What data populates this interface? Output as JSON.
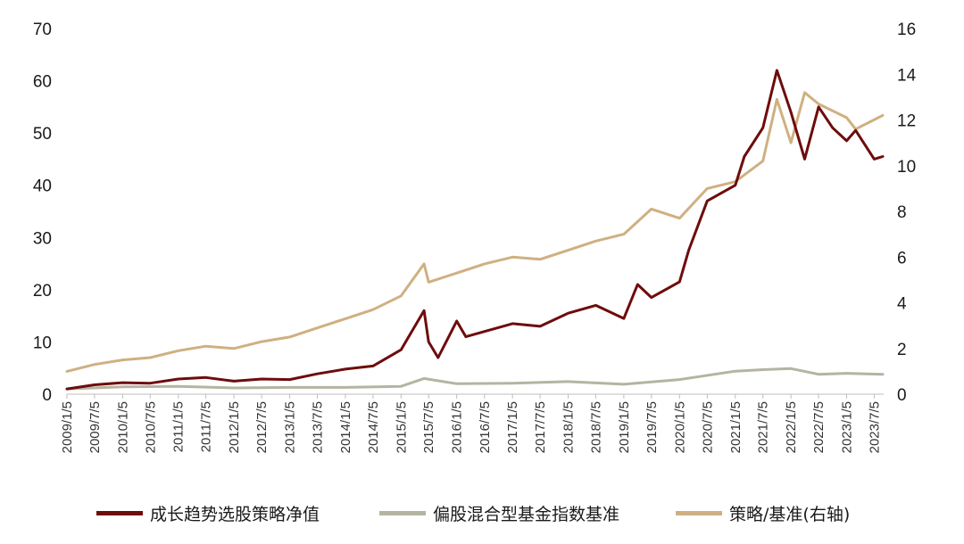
{
  "chart_data": {
    "type": "line",
    "title": "",
    "xlabel": "",
    "ylabel": "",
    "y_left": {
      "ylim": [
        0,
        70
      ],
      "ticks": [
        "0",
        "10",
        "20",
        "30",
        "40",
        "50",
        "60",
        "70"
      ]
    },
    "y_right": {
      "ylim": [
        0,
        16
      ],
      "ticks": [
        "0",
        "2",
        "4",
        "6",
        "8",
        "10",
        "12",
        "14",
        "16"
      ]
    },
    "x_tick_labels": [
      "2009/1/5",
      "2009/7/5",
      "2010/1/5",
      "2010/7/5",
      "2011/1/5",
      "2011/7/5",
      "2012/1/5",
      "2012/7/5",
      "2013/1/5",
      "2013/7/5",
      "2014/1/5",
      "2014/7/5",
      "2015/1/5",
      "2015/7/5",
      "2016/1/5",
      "2016/7/5",
      "2017/1/5",
      "2017/7/5",
      "2018/1/5",
      "2018/7/5",
      "2019/1/5",
      "2019/7/5",
      "2020/1/5",
      "2020/7/5",
      "2021/1/5",
      "2021/7/5",
      "2022/1/5",
      "2022/7/5",
      "2023/1/5",
      "2023/7/5"
    ],
    "grid": false,
    "legend_position": "bottom",
    "series": [
      {
        "name": "成长趋势选股策略净值",
        "axis": "left",
        "color": "#6e0c0c",
        "points": [
          [
            "2009/1/5",
            1.0
          ],
          [
            "2009/7/5",
            1.8
          ],
          [
            "2010/1/5",
            2.2
          ],
          [
            "2010/7/5",
            2.1
          ],
          [
            "2011/1/5",
            2.9
          ],
          [
            "2011/7/5",
            3.2
          ],
          [
            "2012/1/5",
            2.5
          ],
          [
            "2012/7/5",
            2.9
          ],
          [
            "2013/1/5",
            2.8
          ],
          [
            "2013/7/5",
            3.9
          ],
          [
            "2014/1/5",
            4.8
          ],
          [
            "2014/7/5",
            5.4
          ],
          [
            "2015/1/5",
            8.5
          ],
          [
            "2015/6/5",
            16.0
          ],
          [
            "2015/7/5",
            10.0
          ],
          [
            "2015/9/5",
            7.0
          ],
          [
            "2016/1/5",
            14.0
          ],
          [
            "2016/3/5",
            11.0
          ],
          [
            "2016/7/5",
            12.0
          ],
          [
            "2017/1/5",
            13.5
          ],
          [
            "2017/7/5",
            13.0
          ],
          [
            "2018/1/5",
            15.5
          ],
          [
            "2018/7/5",
            17.0
          ],
          [
            "2019/1/5",
            14.5
          ],
          [
            "2019/4/5",
            21.0
          ],
          [
            "2019/7/5",
            18.5
          ],
          [
            "2020/1/5",
            21.5
          ],
          [
            "2020/3/5",
            27.5
          ],
          [
            "2020/7/5",
            37.0
          ],
          [
            "2021/1/5",
            40.0
          ],
          [
            "2021/3/5",
            45.5
          ],
          [
            "2021/7/5",
            51.0
          ],
          [
            "2021/10/5",
            62.0
          ],
          [
            "2022/1/5",
            54.0
          ],
          [
            "2022/4/5",
            45.0
          ],
          [
            "2022/7/5",
            55.0
          ],
          [
            "2022/10/5",
            51.0
          ],
          [
            "2023/1/5",
            48.5
          ],
          [
            "2023/3/5",
            50.5
          ],
          [
            "2023/7/5",
            45.0
          ],
          [
            "2023/8/30",
            45.5
          ]
        ]
      },
      {
        "name": "偏股混合型基金指数基准",
        "axis": "left",
        "color": "#b5b4a2",
        "points": [
          [
            "2009/1/5",
            1.0
          ],
          [
            "2010/1/5",
            1.4
          ],
          [
            "2011/1/5",
            1.5
          ],
          [
            "2012/1/5",
            1.2
          ],
          [
            "2013/1/5",
            1.3
          ],
          [
            "2014/1/5",
            1.3
          ],
          [
            "2015/1/5",
            1.5
          ],
          [
            "2015/6/5",
            3.0
          ],
          [
            "2016/1/5",
            2.0
          ],
          [
            "2017/1/5",
            2.1
          ],
          [
            "2018/1/5",
            2.4
          ],
          [
            "2019/1/5",
            1.9
          ],
          [
            "2020/1/5",
            2.8
          ],
          [
            "2021/1/5",
            4.4
          ],
          [
            "2021/7/5",
            4.7
          ],
          [
            "2022/1/5",
            4.9
          ],
          [
            "2022/7/5",
            3.8
          ],
          [
            "2023/1/5",
            4.0
          ],
          [
            "2023/8/30",
            3.8
          ]
        ]
      },
      {
        "name": "策略/基准(右轴)",
        "axis": "right",
        "color": "#cfb082",
        "points": [
          [
            "2009/1/5",
            1.0
          ],
          [
            "2009/7/5",
            1.3
          ],
          [
            "2010/1/5",
            1.5
          ],
          [
            "2010/7/5",
            1.6
          ],
          [
            "2011/1/5",
            1.9
          ],
          [
            "2011/7/5",
            2.1
          ],
          [
            "2012/1/5",
            2.0
          ],
          [
            "2012/7/5",
            2.3
          ],
          [
            "2013/1/5",
            2.5
          ],
          [
            "2013/7/5",
            2.9
          ],
          [
            "2014/1/5",
            3.3
          ],
          [
            "2014/7/5",
            3.7
          ],
          [
            "2015/1/5",
            4.3
          ],
          [
            "2015/6/5",
            5.7
          ],
          [
            "2015/7/5",
            4.9
          ],
          [
            "2016/1/5",
            5.3
          ],
          [
            "2016/7/5",
            5.7
          ],
          [
            "2017/1/5",
            6.0
          ],
          [
            "2017/7/5",
            5.9
          ],
          [
            "2018/1/5",
            6.3
          ],
          [
            "2018/7/5",
            6.7
          ],
          [
            "2019/1/5",
            7.0
          ],
          [
            "2019/7/5",
            8.1
          ],
          [
            "2020/1/5",
            7.7
          ],
          [
            "2020/7/5",
            9.0
          ],
          [
            "2021/1/5",
            9.3
          ],
          [
            "2021/7/5",
            10.2
          ],
          [
            "2021/10/5",
            12.9
          ],
          [
            "2022/1/5",
            11.0
          ],
          [
            "2022/4/5",
            13.2
          ],
          [
            "2022/7/5",
            12.7
          ],
          [
            "2023/1/5",
            12.1
          ],
          [
            "2023/3/5",
            11.6
          ],
          [
            "2023/8/30",
            12.2
          ]
        ]
      }
    ]
  }
}
